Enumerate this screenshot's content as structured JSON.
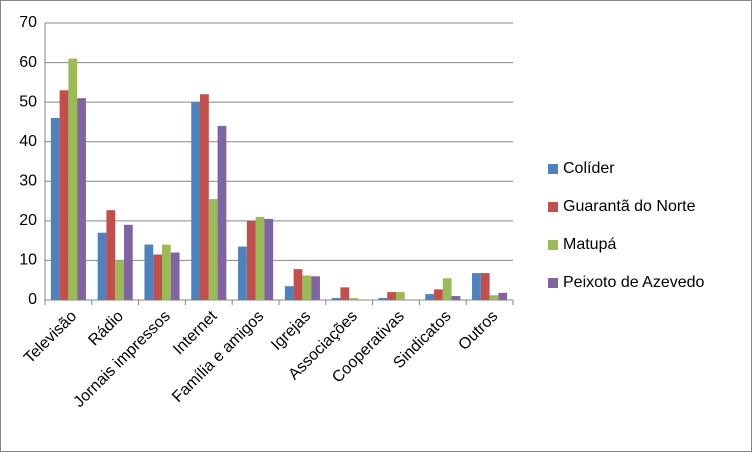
{
  "chart_data": {
    "type": "bar",
    "categories": [
      "Televisão",
      "Rádio",
      "Jornais impressos",
      "Internet",
      "Família e amigos",
      "Igrejas",
      "Associações",
      "Cooperativas",
      "Sindicatos",
      "Outros"
    ],
    "series": [
      {
        "name": "Colíder",
        "color": "#4f81bd",
        "values": [
          46,
          17,
          14,
          50,
          13.5,
          3.5,
          0.5,
          0.5,
          1.5,
          6.8
        ]
      },
      {
        "name": "Guarantã do Norte",
        "color": "#c0504d",
        "values": [
          53,
          22.7,
          11.5,
          52,
          20,
          7.8,
          3.2,
          2,
          2.7,
          6.8
        ]
      },
      {
        "name": "Matupá",
        "color": "#9bbb59",
        "values": [
          61,
          10,
          14,
          25.5,
          21,
          6.2,
          0.5,
          2,
          5.5,
          1.2
        ]
      },
      {
        "name": "Peixoto de Azevedo",
        "color": "#8064a2",
        "values": [
          51,
          19,
          12,
          44,
          20.5,
          6,
          0,
          0,
          1,
          1.8
        ]
      }
    ],
    "ylim": [
      0,
      70
    ],
    "yticks": [
      0,
      10,
      20,
      30,
      40,
      50,
      60,
      70
    ],
    "grid": true,
    "legend": "right"
  }
}
